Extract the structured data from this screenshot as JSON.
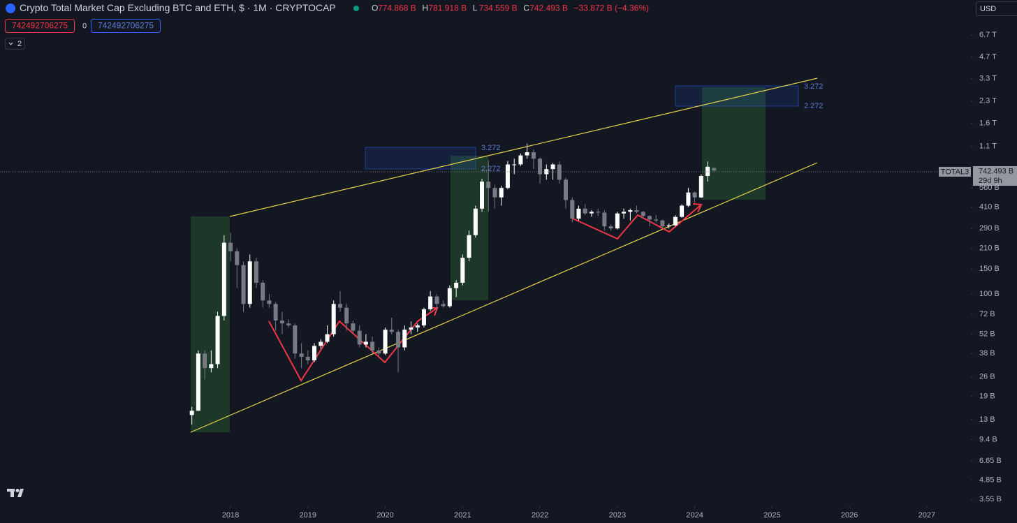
{
  "header": {
    "title": "Crypto Total Market Cap Excluding BTC and ETH, $ · 1M · CRYPTOCAP",
    "ohlc": [
      {
        "key": "O",
        "value": "774.868 B"
      },
      {
        "key": "H",
        "value": "781.918 B"
      },
      {
        "key": "L",
        "value": "734.559 B"
      },
      {
        "key": "C",
        "value": "742.493 B"
      }
    ],
    "change": "−33.872 B (−4.36%)",
    "input_left": "742492706275",
    "input_mid": "0",
    "input_right": "742492706275",
    "collapse": "2",
    "currency": "USD",
    "symbol_tag": "TOTAL3",
    "price_tag": "742.493 B",
    "countdown": "29d 9h",
    "fib_labels": [
      "3.272",
      "2.272",
      "3.272",
      "2.272"
    ]
  },
  "chart_data": {
    "type": "candlestick",
    "log_scale": true,
    "up_color": "#ffffff",
    "down_color": "#787b86",
    "x": [
      2017.5,
      2017.583,
      2017.667,
      2017.75,
      2017.833,
      2017.917,
      2018.0,
      2018.083,
      2018.167,
      2018.25,
      2018.333,
      2018.417,
      2018.5,
      2018.583,
      2018.667,
      2018.75,
      2018.833,
      2018.917,
      2019.0,
      2019.083,
      2019.167,
      2019.25,
      2019.333,
      2019.417,
      2019.5,
      2019.583,
      2019.667,
      2019.75,
      2019.833,
      2019.917,
      2020.0,
      2020.083,
      2020.167,
      2020.25,
      2020.333,
      2020.417,
      2020.5,
      2020.583,
      2020.667,
      2020.75,
      2020.833,
      2020.917,
      2021.0,
      2021.083,
      2021.167,
      2021.25,
      2021.333,
      2021.417,
      2021.5,
      2021.583,
      2021.667,
      2021.75,
      2021.833,
      2021.917,
      2022.0,
      2022.083,
      2022.167,
      2022.25,
      2022.333,
      2022.417,
      2022.5,
      2022.583,
      2022.667,
      2022.75,
      2022.833,
      2022.917,
      2023.0,
      2023.083,
      2023.167,
      2023.25,
      2023.333,
      2023.417,
      2023.5,
      2023.583,
      2023.667,
      2023.75,
      2023.833,
      2023.917,
      2024.0,
      2024.083,
      2024.167,
      2024.25
    ],
    "open": [
      14,
      15,
      38,
      30,
      32,
      70,
      230,
      200,
      160,
      85,
      170,
      120,
      90,
      85,
      65,
      62,
      60,
      38,
      36,
      34,
      43,
      46,
      52,
      85,
      80,
      62,
      55,
      44,
      46,
      40,
      38,
      56,
      54,
      42,
      56,
      58,
      60,
      78,
      96,
      85,
      82,
      110,
      120,
      180,
      260,
      400,
      620,
      560,
      480,
      560,
      820,
      820,
      950,
      1000,
      900,
      700,
      760,
      820,
      640,
      460,
      340,
      400,
      370,
      380,
      375,
      300,
      290,
      370,
      380,
      390,
      380,
      355,
      335,
      330,
      300,
      305,
      350,
      420,
      520,
      480,
      680,
      774.868
    ],
    "high": [
      16,
      40,
      40,
      40,
      75,
      260,
      270,
      210,
      170,
      190,
      180,
      125,
      100,
      88,
      75,
      66,
      62,
      45,
      40,
      45,
      48,
      60,
      90,
      105,
      85,
      65,
      60,
      52,
      50,
      42,
      58,
      68,
      56,
      60,
      64,
      62,
      80,
      105,
      100,
      90,
      115,
      125,
      190,
      280,
      420,
      650,
      880,
      590,
      580,
      870,
      900,
      980,
      1150,
      1050,
      920,
      820,
      840,
      860,
      660,
      480,
      420,
      430,
      390,
      400,
      390,
      310,
      380,
      400,
      400,
      420,
      385,
      360,
      360,
      335,
      315,
      360,
      430,
      560,
      530,
      700,
      860,
      781.918
    ],
    "low": [
      12,
      15,
      25,
      28,
      30,
      65,
      170,
      110,
      75,
      80,
      110,
      80,
      80,
      55,
      52,
      58,
      35,
      30,
      32,
      33,
      41,
      45,
      50,
      75,
      55,
      52,
      42,
      42,
      38,
      36,
      37,
      52,
      28,
      40,
      52,
      54,
      58,
      76,
      76,
      80,
      80,
      95,
      115,
      170,
      250,
      380,
      380,
      400,
      420,
      550,
      700,
      800,
      900,
      760,
      600,
      640,
      640,
      600,
      400,
      320,
      330,
      360,
      350,
      355,
      280,
      280,
      285,
      340,
      330,
      370,
      340,
      300,
      320,
      290,
      290,
      300,
      345,
      410,
      440,
      475,
      620,
      734.559
    ],
    "close": [
      15,
      38,
      30,
      32,
      70,
      230,
      200,
      160,
      85,
      170,
      120,
      90,
      85,
      65,
      62,
      60,
      38,
      36,
      34,
      43,
      46,
      52,
      85,
      80,
      62,
      55,
      44,
      46,
      40,
      38,
      56,
      54,
      42,
      56,
      58,
      60,
      78,
      96,
      85,
      82,
      110,
      120,
      180,
      260,
      400,
      620,
      560,
      480,
      560,
      820,
      820,
      950,
      1000,
      900,
      700,
      760,
      820,
      640,
      460,
      340,
      400,
      370,
      380,
      375,
      300,
      290,
      370,
      380,
      390,
      380,
      355,
      335,
      330,
      300,
      305,
      350,
      420,
      520,
      480,
      680,
      790,
      742.493
    ],
    "xlim": [
      2015.02,
      2027.57
    ],
    "xticks": [
      2018,
      2019,
      2020,
      2021,
      2022,
      2023,
      2024,
      2025,
      2026,
      2027
    ],
    "ylim": [
      3.18,
      11860
    ],
    "yticks": [
      {
        "value": 6700,
        "label": "6.7 T"
      },
      {
        "value": 4700,
        "label": "4.7 T"
      },
      {
        "value": 3300,
        "label": "3.3 T"
      },
      {
        "value": 2300,
        "label": "2.3 T"
      },
      {
        "value": 1600,
        "label": "1.6 T"
      },
      {
        "value": 1100,
        "label": "1.1 T"
      },
      {
        "value": 560,
        "label": "560 B"
      },
      {
        "value": 410,
        "label": "410 B"
      },
      {
        "value": 290,
        "label": "290 B"
      },
      {
        "value": 210,
        "label": "210 B"
      },
      {
        "value": 150,
        "label": "150 B"
      },
      {
        "value": 100,
        "label": "100 B"
      },
      {
        "value": 72,
        "label": "72 B"
      },
      {
        "value": 52,
        "label": "52 B"
      },
      {
        "value": 38,
        "label": "38 B"
      },
      {
        "value": 26,
        "label": "26 B"
      },
      {
        "value": 19,
        "label": "19 B"
      },
      {
        "value": 13,
        "label": "13 B"
      },
      {
        "value": 9.4,
        "label": "9.4 B"
      },
      {
        "value": 6.65,
        "label": "6.65 B"
      },
      {
        "value": 4.85,
        "label": "4.85 B"
      },
      {
        "value": 3.55,
        "label": "3.55 B"
      }
    ]
  }
}
